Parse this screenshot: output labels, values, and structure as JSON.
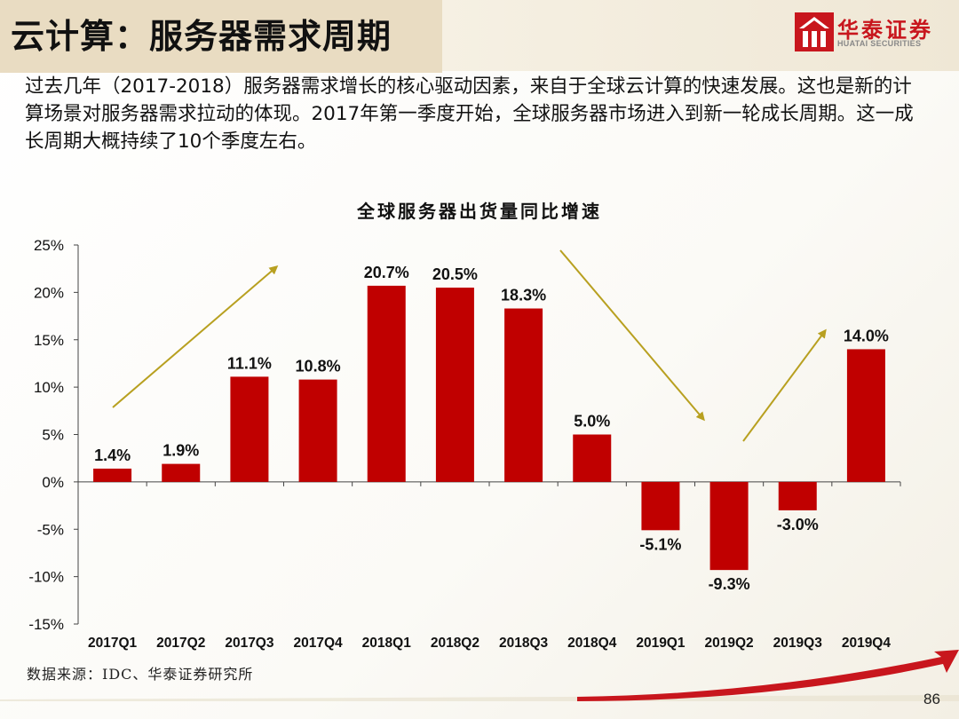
{
  "header": {
    "title": "云计算：服务器需求周期",
    "logo_cn": "华泰证券",
    "logo_en": "HUATAI SECURITIES"
  },
  "intro": "过去几年（2017-2018）服务器需求增长的核心驱动因素，来自于全球云计算的快速发展。这也是新的计算场景对服务器需求拉动的体现。2017年第一季度开始，全球服务器市场进入到新一轮成长周期。这一成长周期大概持续了10个季度左右。",
  "chart_data": {
    "type": "bar",
    "title": "全球服务器出货量同比增速",
    "xlabel": "",
    "ylabel": "",
    "categories": [
      "2017Q1",
      "2017Q2",
      "2017Q3",
      "2017Q4",
      "2018Q1",
      "2018Q2",
      "2018Q3",
      "2018Q4",
      "2019Q1",
      "2019Q2",
      "2019Q3",
      "2019Q4"
    ],
    "values": [
      1.4,
      1.9,
      11.1,
      10.8,
      20.7,
      20.5,
      18.3,
      5.0,
      -5.1,
      -9.3,
      -3.0,
      14.0
    ],
    "data_labels": [
      "1.4%",
      "1.9%",
      "11.1%",
      "10.8%",
      "20.7%",
      "20.5%",
      "18.3%",
      "5.0%",
      "-5.1%",
      "-9.3%",
      "-3.0%",
      "14.0%"
    ],
    "ylim": [
      -15,
      25
    ],
    "yticks": [
      25,
      20,
      15,
      10,
      5,
      0,
      -5,
      -10,
      -15
    ],
    "ytick_labels": [
      "25%",
      "20%",
      "15%",
      "10%",
      "5%",
      "0%",
      "-5%",
      "-10%",
      "-15%"
    ],
    "grid": false,
    "bar_color": "#c00000",
    "trend_arrow_color": "#b8a020"
  },
  "footer": {
    "source": "数据来源：IDC、华泰证券研究所",
    "page_number": "86"
  },
  "colors": {
    "accent": "#c8161d",
    "title_box": "#e9dcc2"
  }
}
